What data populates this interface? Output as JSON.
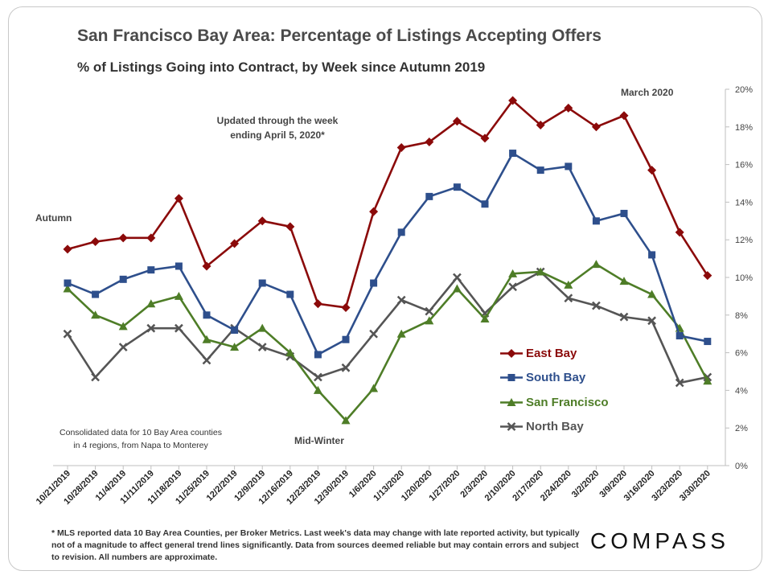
{
  "chart_data": {
    "type": "line",
    "title": "San Francisco Bay Area: Percentage of Listings Accepting Offers",
    "subtitle": "% of Listings Going into Contract, by Week since Autumn 2019",
    "xlabel": "",
    "ylabel": "",
    "ylim": [
      0,
      20
    ],
    "y_ticks": [
      "0%",
      "2%",
      "4%",
      "6%",
      "8%",
      "10%",
      "12%",
      "14%",
      "16%",
      "18%",
      "20%"
    ],
    "y_tick_values": [
      0,
      2,
      4,
      6,
      8,
      10,
      12,
      14,
      16,
      18,
      20
    ],
    "y_axis_side": "right",
    "grid": false,
    "categories": [
      "10/21/2019",
      "10/28/2019",
      "11/4/2019",
      "11/11/2019",
      "11/18/2019",
      "11/25/2019",
      "12/2/2019",
      "12/9/2019",
      "12/16/2019",
      "12/23/2019",
      "12/30/2019",
      "1/6/2020",
      "1/13/2020",
      "1/20/2020",
      "1/27/2020",
      "2/3/2020",
      "2/10/2020",
      "2/17/2020",
      "2/24/2020",
      "3/2/2020",
      "3/9/2020",
      "3/16/2020",
      "3/23/2020",
      "3/30/2020"
    ],
    "series": [
      {
        "name": "East Bay",
        "color": "#8b0a0a",
        "marker": "diamond",
        "values": [
          11.5,
          11.9,
          12.1,
          12.1,
          14.2,
          10.6,
          11.8,
          13.0,
          12.7,
          8.6,
          8.4,
          13.5,
          16.9,
          17.2,
          18.3,
          17.4,
          19.4,
          18.1,
          19.0,
          18.0,
          18.6,
          15.7,
          12.4,
          10.1
        ]
      },
      {
        "name": "South Bay",
        "color": "#2e4f8c",
        "marker": "square",
        "values": [
          9.7,
          9.1,
          9.9,
          10.4,
          10.6,
          8.0,
          7.2,
          9.7,
          9.1,
          5.9,
          6.7,
          9.7,
          12.4,
          14.3,
          14.8,
          13.9,
          16.6,
          15.7,
          15.9,
          13.0,
          13.4,
          11.2,
          6.9,
          6.6
        ]
      },
      {
        "name": "San Francisco",
        "color": "#4e7d27",
        "marker": "triangle",
        "values": [
          9.4,
          8.0,
          7.4,
          8.6,
          9.0,
          6.7,
          6.3,
          7.3,
          6.0,
          4.0,
          2.4,
          4.1,
          7.0,
          7.7,
          9.4,
          7.8,
          10.2,
          10.3,
          9.6,
          10.7,
          9.8,
          9.1,
          7.3,
          4.5
        ]
      },
      {
        "name": "North Bay",
        "color": "#555555",
        "marker": "x",
        "values": [
          7.0,
          4.7,
          6.3,
          7.3,
          7.3,
          5.6,
          7.3,
          6.3,
          5.8,
          4.7,
          5.2,
          7.0,
          8.8,
          8.2,
          10.0,
          8.1,
          9.5,
          10.3,
          8.9,
          8.5,
          7.9,
          7.7,
          4.4,
          4.7
        ]
      }
    ],
    "annotations": {
      "updated": [
        "Updated through the week",
        "ending April 5, 2020*"
      ],
      "march": "March 2020",
      "autumn": "Autumn",
      "midwinter": "Mid-Winter",
      "consolidated": [
        "Consolidated data for 10 Bay Area counties",
        "in 4 regions, from Napa to Monterey"
      ]
    }
  },
  "footnote": "* MLS reported data 10 Bay Area Counties, per Broker Metrics. Last week's data may change with late reported activity, but typically not of a magnitude to affect general trend lines significantly. Data from sources deemed reliable but may contain errors and subject to revision. All numbers are approximate.",
  "logo": "COMPASS"
}
